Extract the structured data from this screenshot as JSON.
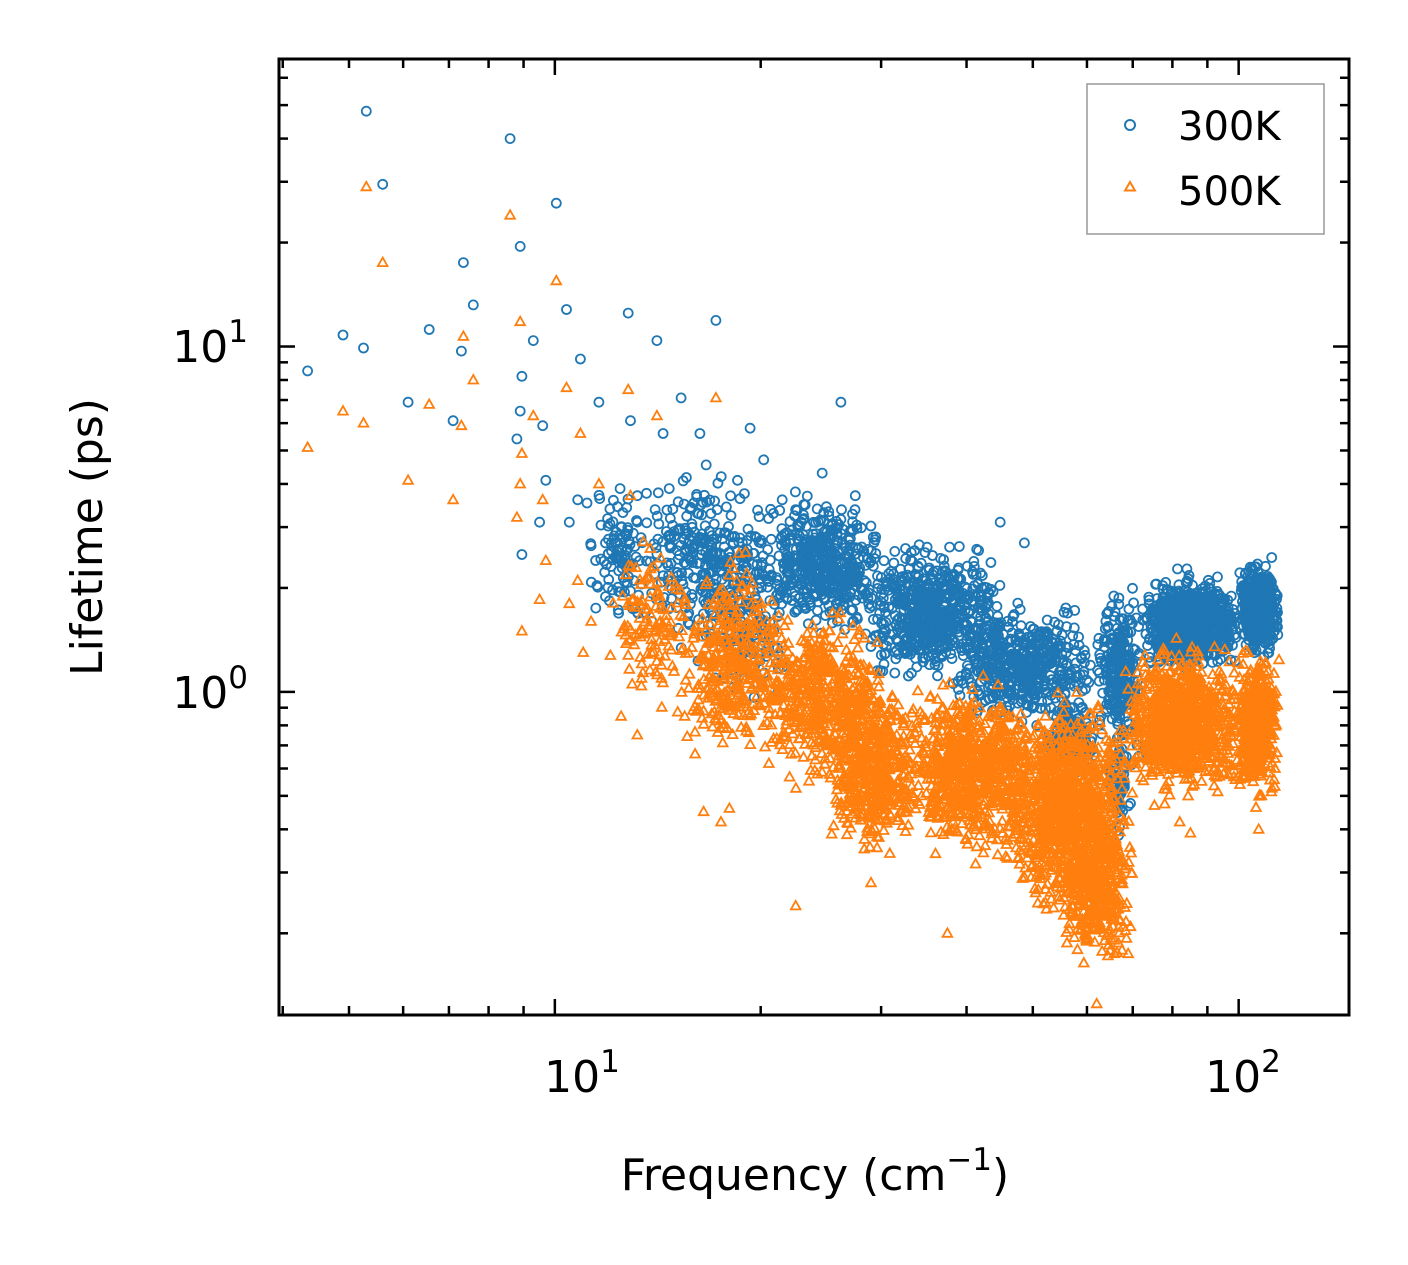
{
  "chart_data": {
    "type": "scatter",
    "title": "",
    "xlabel": "Frequency (cm",
    "xlabel_sup": "−1",
    "xlabel_end": ")",
    "ylabel": "Lifetime (ps)",
    "xscale": "log",
    "yscale": "log",
    "xlim": [
      3.95,
      145
    ],
    "ylim": [
      0.116,
      68
    ],
    "x_ticks": [
      {
        "base": "10",
        "exp": "1",
        "value": 10
      },
      {
        "base": "10",
        "exp": "2",
        "value": 100
      }
    ],
    "y_ticks": [
      {
        "base": "10",
        "exp": "0",
        "value": 1
      },
      {
        "base": "10",
        "exp": "1",
        "value": 10
      }
    ],
    "legend": {
      "location": "top-right",
      "entries": [
        "300K",
        "500K"
      ]
    },
    "series": [
      {
        "name": "300K",
        "marker": "circle",
        "color": "#1f77b4",
        "points": [
          [
            4.35,
            8.5
          ],
          [
            4.9,
            10.8
          ],
          [
            5.25,
            9.9
          ],
          [
            5.3,
            48
          ],
          [
            5.6,
            29.5
          ],
          [
            6.1,
            6.9
          ],
          [
            6.55,
            11.2
          ],
          [
            7.1,
            6.1
          ],
          [
            7.3,
            9.7
          ],
          [
            7.35,
            17.5
          ],
          [
            7.6,
            13.2
          ],
          [
            8.6,
            40
          ],
          [
            8.9,
            19.5
          ],
          [
            8.95,
            8.2
          ],
          [
            8.9,
            6.5
          ],
          [
            8.8,
            5.4
          ],
          [
            8.95,
            2.5
          ],
          [
            9.3,
            10.4
          ],
          [
            9.6,
            5.9
          ],
          [
            10.05,
            26
          ],
          [
            10.4,
            12.8
          ],
          [
            10.9,
            9.2
          ],
          [
            9.7,
            4.1
          ],
          [
            9.5,
            3.1
          ],
          [
            10.5,
            3.1
          ],
          [
            10.8,
            3.6
          ],
          [
            11.3,
            2.65
          ],
          [
            11.6,
            6.9
          ],
          [
            12.8,
            12.5
          ],
          [
            12.9,
            6.1
          ],
          [
            13.2,
            3.7
          ],
          [
            14.1,
            10.4
          ],
          [
            14.4,
            5.6
          ],
          [
            15.3,
            7.1
          ],
          [
            16.3,
            5.6
          ],
          [
            17.2,
            11.9
          ],
          [
            18.5,
            4.1
          ],
          [
            19.3,
            5.8
          ],
          [
            20.2,
            4.7
          ],
          [
            21.5,
            3.6
          ],
          [
            24.6,
            4.3
          ],
          [
            26.2,
            6.9
          ],
          [
            44.8,
            3.1
          ],
          [
            27.5,
            3.7
          ],
          [
            48.6,
            2.7
          ],
          [
            23,
            2.5
          ],
          [
            21.2,
            0.95
          ],
          [
            20,
            1.55
          ]
        ],
        "clusters": [
          {
            "x": [
              11,
              14
            ],
            "y": [
              1.4,
              4.5
            ],
            "n": 110
          },
          {
            "x": [
              13.5,
              21
            ],
            "y": [
              1.2,
              4.8
            ],
            "n": 320
          },
          {
            "x": [
              16,
              22
            ],
            "y": [
              0.8,
              2.6
            ],
            "n": 120
          },
          {
            "x": [
              20,
              30
            ],
            "y": [
              1.4,
              4.0
            ],
            "n": 480
          },
          {
            "x": [
              28,
              45
            ],
            "y": [
              1.0,
              2.9
            ],
            "n": 640
          },
          {
            "x": [
              38,
              62
            ],
            "y": [
              0.75,
              1.9
            ],
            "n": 520
          },
          {
            "x": [
              52,
              62
            ],
            "y": [
              0.55,
              1.0
            ],
            "n": 160
          },
          {
            "x": [
              62,
              72
            ],
            "y": [
              0.6,
              2.2
            ],
            "n": 260
          },
          {
            "x": [
              64,
              70
            ],
            "y": [
              0.35,
              0.8
            ],
            "n": 60
          },
          {
            "x": [
              72,
              100
            ],
            "y": [
              1.1,
              2.3
            ],
            "n": 900
          },
          {
            "x": [
              100,
              115
            ],
            "y": [
              1.2,
              2.5
            ],
            "n": 480
          }
        ]
      },
      {
        "name": "500K",
        "marker": "triangle",
        "color": "#ff7f0e",
        "points": [
          [
            4.35,
            5.1
          ],
          [
            4.9,
            6.5
          ],
          [
            5.25,
            6.0
          ],
          [
            5.3,
            29
          ],
          [
            5.6,
            17.5
          ],
          [
            6.1,
            4.1
          ],
          [
            6.55,
            6.8
          ],
          [
            7.1,
            3.6
          ],
          [
            7.3,
            5.9
          ],
          [
            7.35,
            10.7
          ],
          [
            7.6,
            8.0
          ],
          [
            8.6,
            24
          ],
          [
            8.9,
            11.8
          ],
          [
            8.95,
            4.9
          ],
          [
            8.9,
            4.0
          ],
          [
            8.8,
            3.2
          ],
          [
            8.95,
            1.5
          ],
          [
            9.3,
            6.3
          ],
          [
            9.6,
            3.6
          ],
          [
            10.05,
            15.5
          ],
          [
            10.4,
            7.6
          ],
          [
            10.9,
            5.6
          ],
          [
            9.7,
            2.4
          ],
          [
            9.5,
            1.85
          ],
          [
            10.5,
            1.8
          ],
          [
            10.8,
            2.1
          ],
          [
            11.3,
            1.6
          ],
          [
            11.6,
            4.0
          ],
          [
            12.8,
            7.5
          ],
          [
            12.9,
            3.7
          ],
          [
            14.1,
            6.3
          ],
          [
            17.2,
            7.1
          ],
          [
            11,
            1.3
          ],
          [
            12.5,
            0.85
          ],
          [
            13.2,
            0.75
          ],
          [
            16.5,
            0.45
          ],
          [
            17.5,
            0.42
          ],
          [
            18,
            0.46
          ],
          [
            22.5,
            0.24
          ],
          [
            29,
            0.28
          ],
          [
            37.5,
            0.2
          ],
          [
            62,
            0.125
          ],
          [
            82,
            0.42
          ],
          [
            85,
            0.39
          ],
          [
            107,
            0.4
          ],
          [
            113,
            0.6
          ],
          [
            108,
            0.5
          ],
          [
            104,
            0.6
          ]
        ],
        "clusters": [
          {
            "x": [
              12,
              16
            ],
            "y": [
              0.8,
              3.2
            ],
            "n": 120
          },
          {
            "x": [
              15,
              22
            ],
            "y": [
              0.55,
              2.8
            ],
            "n": 360
          },
          {
            "x": [
              20,
              30
            ],
            "y": [
              0.5,
              1.9
            ],
            "n": 500
          },
          {
            "x": [
              25,
              35
            ],
            "y": [
              0.3,
              1.2
            ],
            "n": 520
          },
          {
            "x": [
              33,
              50
            ],
            "y": [
              0.3,
              1.2
            ],
            "n": 720
          },
          {
            "x": [
              45,
              70
            ],
            "y": [
              0.2,
              1.1
            ],
            "n": 1000
          },
          {
            "x": [
              55,
              70
            ],
            "y": [
              0.15,
              0.5
            ],
            "n": 400
          },
          {
            "x": [
              68,
              100
            ],
            "y": [
              0.45,
              1.5
            ],
            "n": 900
          },
          {
            "x": [
              98,
              115
            ],
            "y": [
              0.45,
              1.4
            ],
            "n": 420
          }
        ]
      }
    ]
  }
}
